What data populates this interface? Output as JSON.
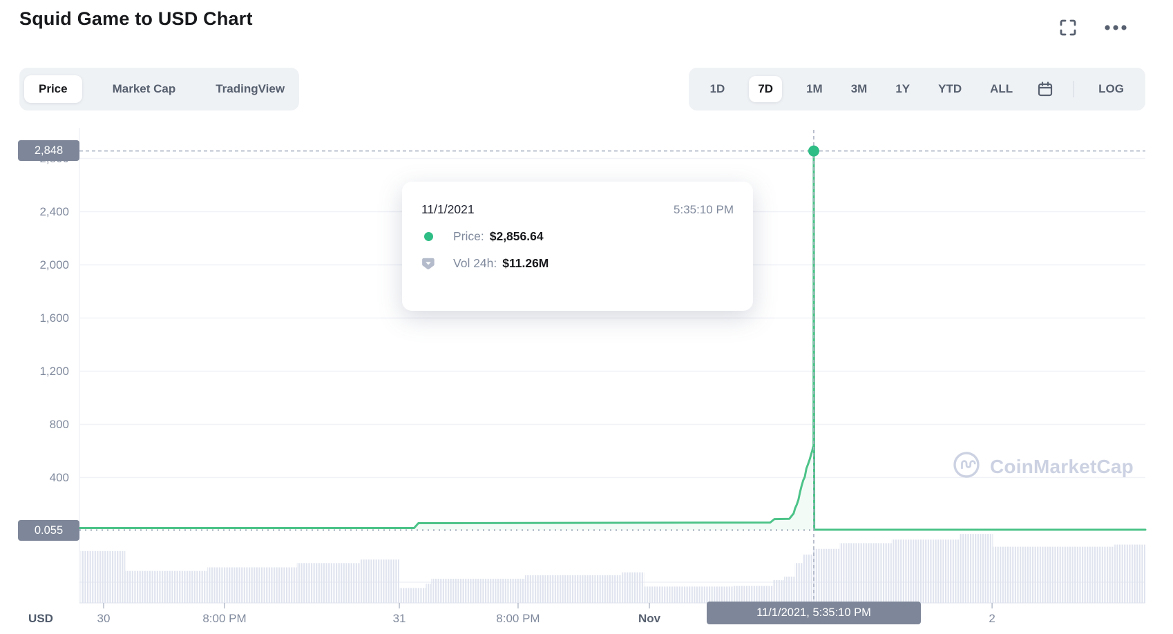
{
  "header": {
    "title": "Squid Game to USD Chart"
  },
  "view_tabs": [
    {
      "label": "Price",
      "active": true
    },
    {
      "label": "Market Cap",
      "active": false
    },
    {
      "label": "TradingView",
      "active": false
    }
  ],
  "range_toolbar": {
    "ranges": [
      {
        "label": "1D",
        "active": false
      },
      {
        "label": "7D",
        "active": true
      },
      {
        "label": "1M",
        "active": false
      },
      {
        "label": "3M",
        "active": false
      },
      {
        "label": "1Y",
        "active": false
      },
      {
        "label": "YTD",
        "active": false
      },
      {
        "label": "ALL",
        "active": false
      }
    ],
    "log_label": "LOG"
  },
  "tooltip": {
    "date": "11/1/2021",
    "time": "5:35:10 PM",
    "rows": [
      {
        "label": "Price:",
        "value": "$2,856.64"
      },
      {
        "label": "Vol 24h:",
        "value": "$11.26M"
      }
    ]
  },
  "y_axis": {
    "crosshair_badge": "2,848",
    "tick_labels": [
      "2,800",
      "2,400",
      "2,000",
      "1,600",
      "1,200",
      "800",
      "400"
    ],
    "current_price_badge": "0.055"
  },
  "x_axis": {
    "unit": "USD",
    "ticks": [
      {
        "label": "30",
        "f": 0.0227,
        "bold": false
      },
      {
        "label": "8:00 PM",
        "f": 0.1361,
        "bold": false
      },
      {
        "label": "31",
        "f": 0.3001,
        "bold": false
      },
      {
        "label": "8:00 PM",
        "f": 0.4115,
        "bold": false
      },
      {
        "label": "Nov",
        "f": 0.5347,
        "bold": true
      },
      {
        "label": "2",
        "f": 0.8562,
        "bold": false
      }
    ],
    "crosshair_badge": "11/1/2021, 5:35:10 PM"
  },
  "watermark": {
    "label": "CoinMarketCap"
  },
  "colors": {
    "accent_green": "#4cc388",
    "dot_green": "#2ebd85",
    "volume_bar": "#dfe3ee",
    "badge": "#7e8799",
    "grid": "#f0f2f7",
    "axis_text": "#808a9d",
    "crosshair": "#a9b1c2"
  },
  "chart_data": {
    "type": "line",
    "title": "Squid Game (SQUID) to USD, 7D price chart with volume",
    "xlabel": "",
    "ylabel": "USD",
    "ylim": [
      0,
      2900
    ],
    "y_gridlines": [
      2800,
      2400,
      2000,
      1600,
      1200,
      800,
      400
    ],
    "x_range": [
      "Oct 30",
      "Nov 2"
    ],
    "legend_position": "none",
    "grid": true,
    "crosshair": {
      "f": 0.6889,
      "time_label": "11/1/2021, 5:35:10 PM",
      "price": 2856.64,
      "axis_value": 2848,
      "vol_24h": "$11.26M"
    },
    "current_price": 0.055,
    "price_series": {
      "name": "Price (USD)",
      "points_f_usd": [
        [
          0.0,
          21
        ],
        [
          0.314,
          21
        ],
        [
          0.318,
          57
        ],
        [
          0.648,
          62
        ],
        [
          0.652,
          88
        ],
        [
          0.666,
          90
        ],
        [
          0.67,
          130
        ],
        [
          0.6715,
          171
        ],
        [
          0.673,
          197
        ],
        [
          0.6745,
          234
        ],
        [
          0.676,
          291
        ],
        [
          0.6775,
          338
        ],
        [
          0.679,
          379
        ],
        [
          0.6805,
          405
        ],
        [
          0.682,
          468
        ],
        [
          0.6835,
          499
        ],
        [
          0.685,
          535
        ],
        [
          0.6865,
          577
        ],
        [
          0.6875,
          603
        ],
        [
          0.6883,
          629
        ],
        [
          0.6887,
          639
        ],
        [
          0.6889,
          2856.64
        ],
        [
          0.6893,
          0.055
        ],
        [
          1.0,
          0.055
        ]
      ]
    },
    "volume_series": {
      "name": "Vol 24h",
      "unit": "relative pane height (0-1), 24h volume at crosshair = $11.26M",
      "segments_f0_f1_h": [
        [
          0.001,
          0.043,
          0.73
        ],
        [
          0.043,
          0.12,
          0.45
        ],
        [
          0.12,
          0.204,
          0.5
        ],
        [
          0.204,
          0.263,
          0.56
        ],
        [
          0.263,
          0.3,
          0.61
        ],
        [
          0.3,
          0.325,
          0.21
        ],
        [
          0.325,
          0.33,
          0.27
        ],
        [
          0.33,
          0.418,
          0.34
        ],
        [
          0.418,
          0.509,
          0.39
        ],
        [
          0.509,
          0.53,
          0.43
        ],
        [
          0.53,
          0.613,
          0.23
        ],
        [
          0.613,
          0.651,
          0.24
        ],
        [
          0.651,
          0.661,
          0.32
        ],
        [
          0.661,
          0.671,
          0.37
        ],
        [
          0.671,
          0.679,
          0.56
        ],
        [
          0.679,
          0.688,
          0.68
        ],
        [
          0.688,
          0.713,
          0.76
        ],
        [
          0.713,
          0.762,
          0.84
        ],
        [
          0.762,
          0.826,
          0.89
        ],
        [
          0.826,
          0.857,
          0.97
        ],
        [
          0.857,
          0.971,
          0.79
        ],
        [
          0.971,
          1.0,
          0.82
        ]
      ]
    }
  }
}
